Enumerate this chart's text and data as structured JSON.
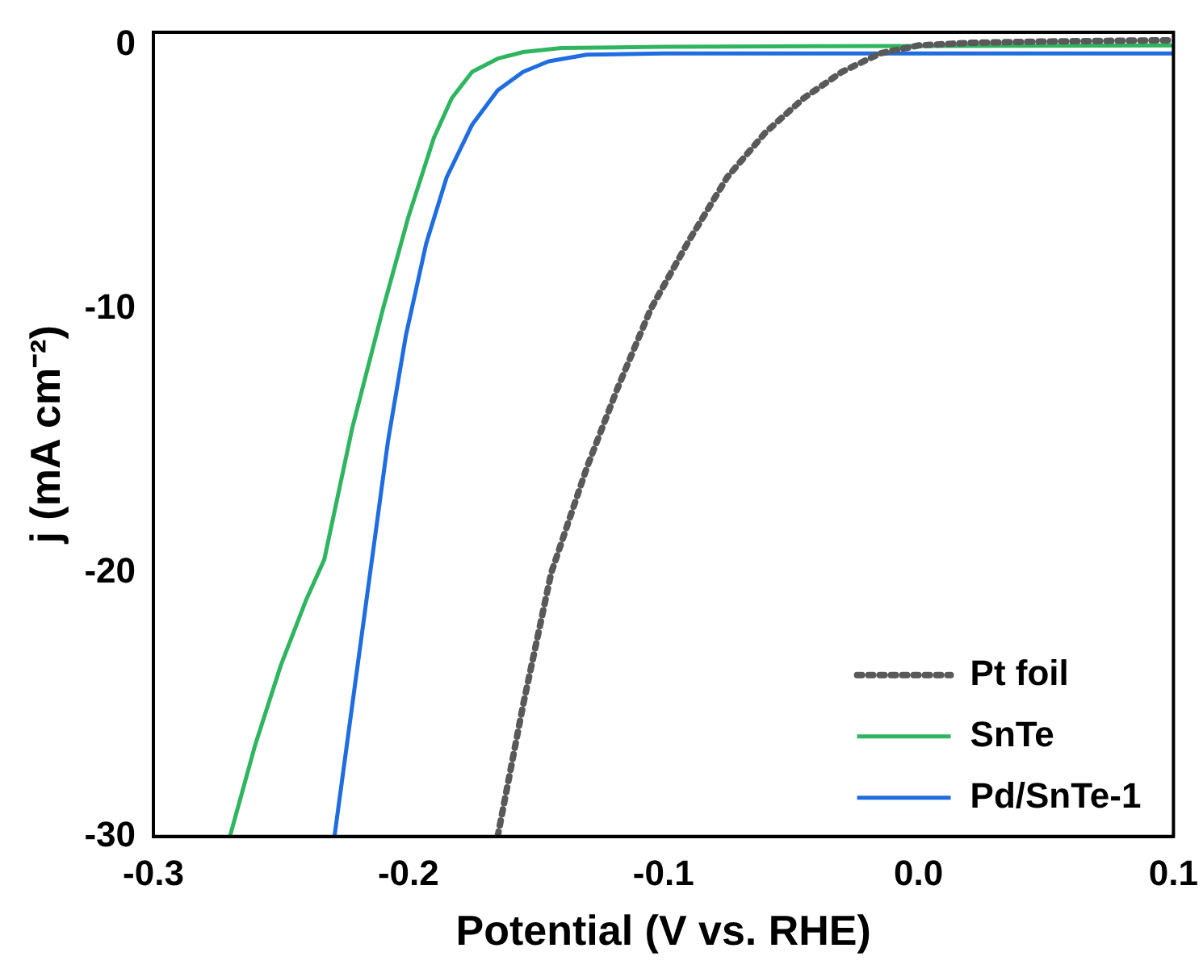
{
  "chart_data": {
    "type": "line",
    "xlabel": "Potential (V vs. RHE)",
    "ylabel": "j (mA cm⁻²)",
    "xlim": [
      -0.3,
      0.1
    ],
    "xticks": [
      {
        "value": -0.3,
        "label": "-0.3"
      },
      {
        "value": -0.2,
        "label": "-0.2"
      },
      {
        "value": -0.1,
        "label": "-0.1"
      },
      {
        "value": 0,
        "label": "0.0"
      },
      {
        "value": 0.1,
        "label": "0.1"
      }
    ],
    "ylim": [
      -30,
      0.5
    ],
    "yticks": [
      -30,
      -20,
      -10,
      0
    ],
    "grid": false,
    "legend": "bottom right",
    "series": [
      {
        "name": "Pt foil",
        "color": "#595959",
        "line_style": "dotted",
        "x": [
          -0.165,
          -0.155,
          -0.144,
          -0.13,
          -0.118,
          -0.105,
          -0.09,
          -0.075,
          -0.06,
          -0.045,
          -0.03,
          -0.015,
          0.0,
          0.02,
          0.05,
          0.1
        ],
        "values": [
          -30,
          -25,
          -20,
          -16,
          -13,
          -10,
          -7.4,
          -5,
          -3.3,
          -2,
          -1,
          -0.3,
          0,
          0.1,
          0.15,
          0.2
        ]
      },
      {
        "name": "SnTe",
        "color": "#2fb55f",
        "line_style": "solid",
        "x": [
          -0.27,
          -0.26,
          -0.25,
          -0.24,
          -0.233,
          -0.222,
          -0.21,
          -0.2,
          -0.19,
          -0.183,
          -0.175,
          -0.165,
          -0.155,
          -0.14,
          -0.1,
          0.0,
          0.1
        ],
        "values": [
          -30,
          -26.5,
          -23.5,
          -21,
          -19.5,
          -14.5,
          -10,
          -6.5,
          -3.5,
          -2,
          -1,
          -0.5,
          -0.25,
          -0.1,
          -0.05,
          -0.02,
          0
        ]
      },
      {
        "name": "Pd/SnTe-1",
        "color": "#1f6de0",
        "line_style": "solid",
        "x": [
          -0.229,
          -0.222,
          -0.215,
          -0.208,
          -0.201,
          -0.193,
          -0.185,
          -0.175,
          -0.165,
          -0.155,
          -0.145,
          -0.13,
          -0.1,
          0.0,
          0.1
        ],
        "values": [
          -30,
          -25,
          -20,
          -15,
          -11,
          -7.5,
          -5,
          -3,
          -1.7,
          -1,
          -0.6,
          -0.35,
          -0.3,
          -0.3,
          -0.3
        ]
      }
    ]
  }
}
